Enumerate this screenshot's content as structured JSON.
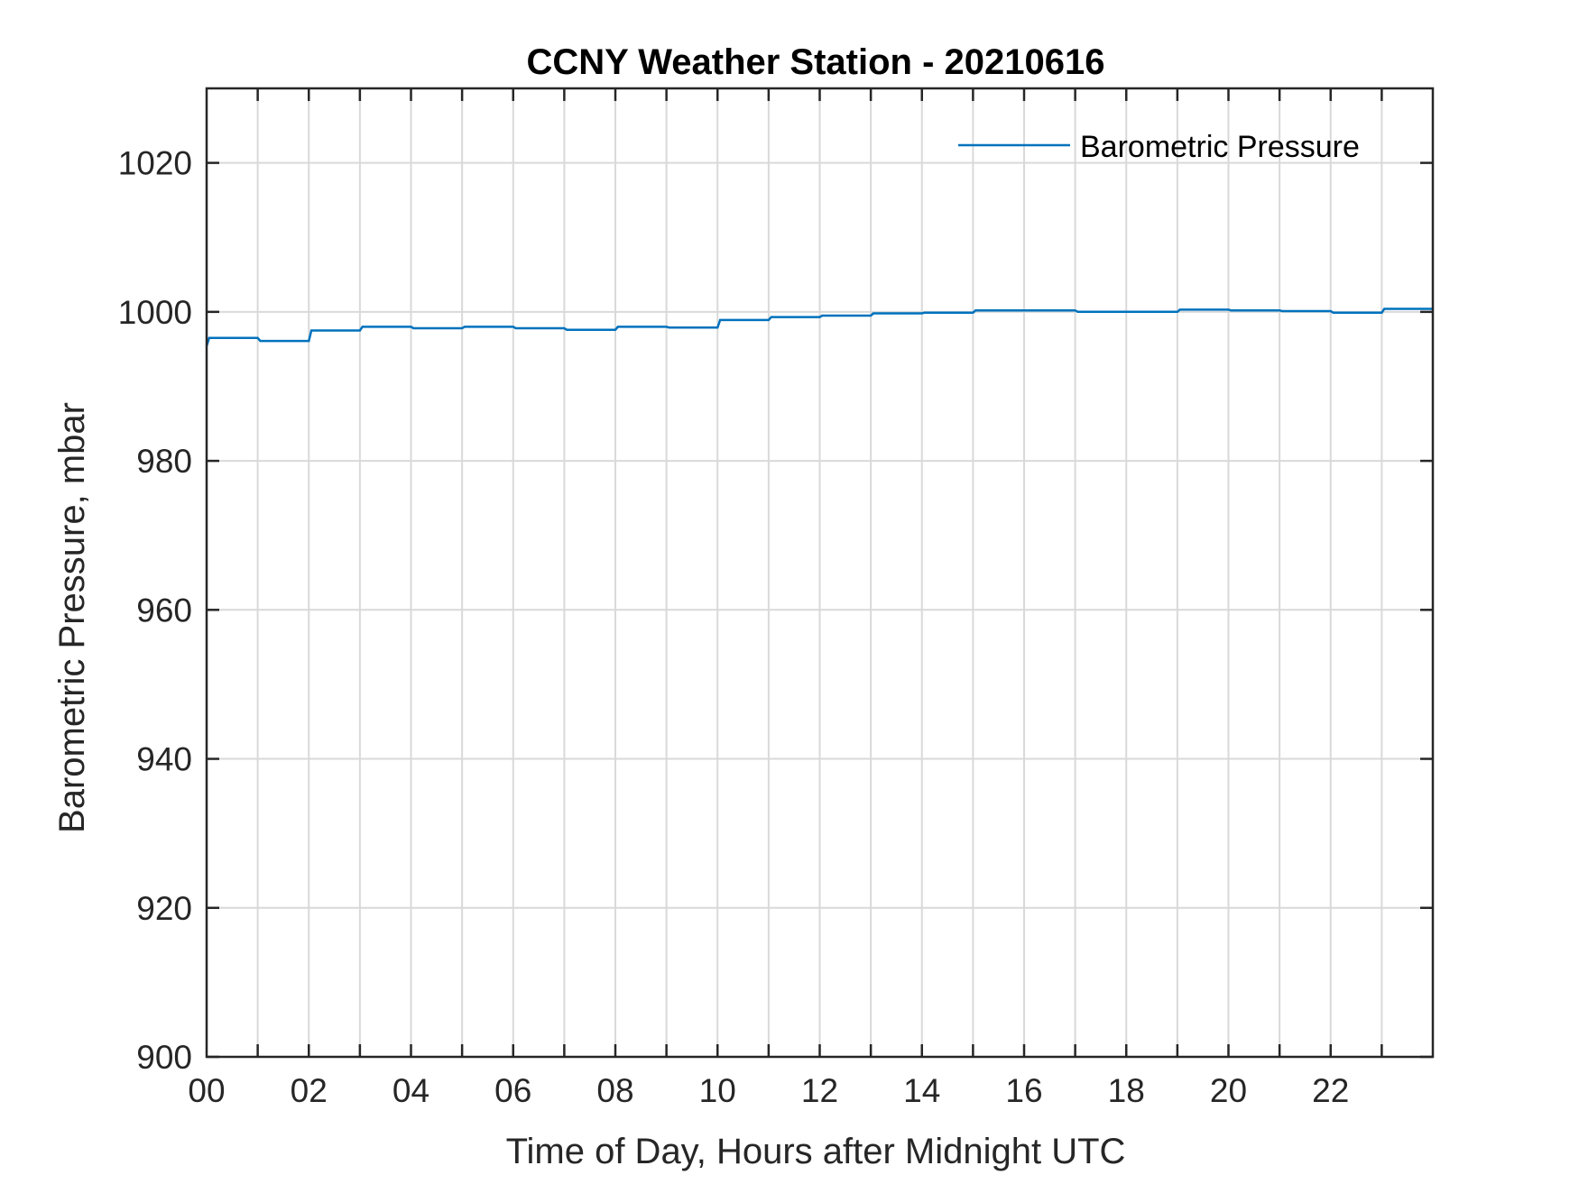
{
  "chart_data": {
    "type": "line",
    "title": "CCNY Weather Station - 20210616",
    "xlabel": "Time of Day, Hours after Midnight UTC",
    "ylabel": "Barometric Pressure, mbar",
    "xlim": [
      0,
      24
    ],
    "ylim": [
      900,
      1030
    ],
    "x_ticks": [
      0,
      2,
      4,
      6,
      8,
      10,
      12,
      14,
      16,
      18,
      20,
      22
    ],
    "x_tick_labels": [
      "00",
      "02",
      "04",
      "06",
      "08",
      "10",
      "12",
      "14",
      "16",
      "18",
      "20",
      "22"
    ],
    "x_grid": [
      0,
      1,
      2,
      3,
      4,
      5,
      6,
      7,
      8,
      9,
      10,
      11,
      12,
      13,
      14,
      15,
      16,
      17,
      18,
      19,
      20,
      21,
      22,
      23,
      24
    ],
    "y_ticks": [
      900,
      920,
      940,
      960,
      980,
      1000,
      1020
    ],
    "y_tick_labels": [
      "900",
      "920",
      "940",
      "960",
      "980",
      "1000",
      "1020"
    ],
    "grid": true,
    "legend_position": "top-right",
    "colors": {
      "series": "#0072BD",
      "grid": "#d9d9d9",
      "axes": "#262626"
    },
    "series": [
      {
        "name": "Barometric Pressure",
        "x": [
          0,
          0.05,
          1,
          1.05,
          2,
          2.05,
          3,
          3.05,
          4,
          4.05,
          5,
          5.05,
          6,
          6.05,
          7,
          7.05,
          8,
          8.05,
          9,
          9.05,
          10,
          10.05,
          11,
          11.05,
          12,
          12.05,
          13,
          13.05,
          14,
          14.05,
          15,
          15.05,
          16,
          16.05,
          17,
          17.05,
          18,
          18.05,
          19,
          19.05,
          20,
          20.05,
          21,
          21.05,
          22,
          22.05,
          23,
          23.05,
          24
        ],
        "y": [
          995.4,
          996.5,
          996.5,
          996.1,
          996.1,
          997.5,
          997.5,
          998.0,
          998.0,
          997.8,
          997.8,
          998.0,
          998.0,
          997.8,
          997.8,
          997.6,
          997.6,
          998.0,
          998.0,
          997.9,
          997.9,
          998.9,
          998.9,
          999.3,
          999.3,
          999.5,
          999.5,
          999.8,
          999.8,
          999.9,
          999.9,
          1000.2,
          1000.2,
          1000.2,
          1000.2,
          1000.0,
          1000.0,
          1000.0,
          1000.0,
          1000.3,
          1000.3,
          1000.2,
          1000.2,
          1000.1,
          1000.1,
          999.9,
          999.9,
          1000.4,
          1000.4
        ]
      }
    ]
  }
}
